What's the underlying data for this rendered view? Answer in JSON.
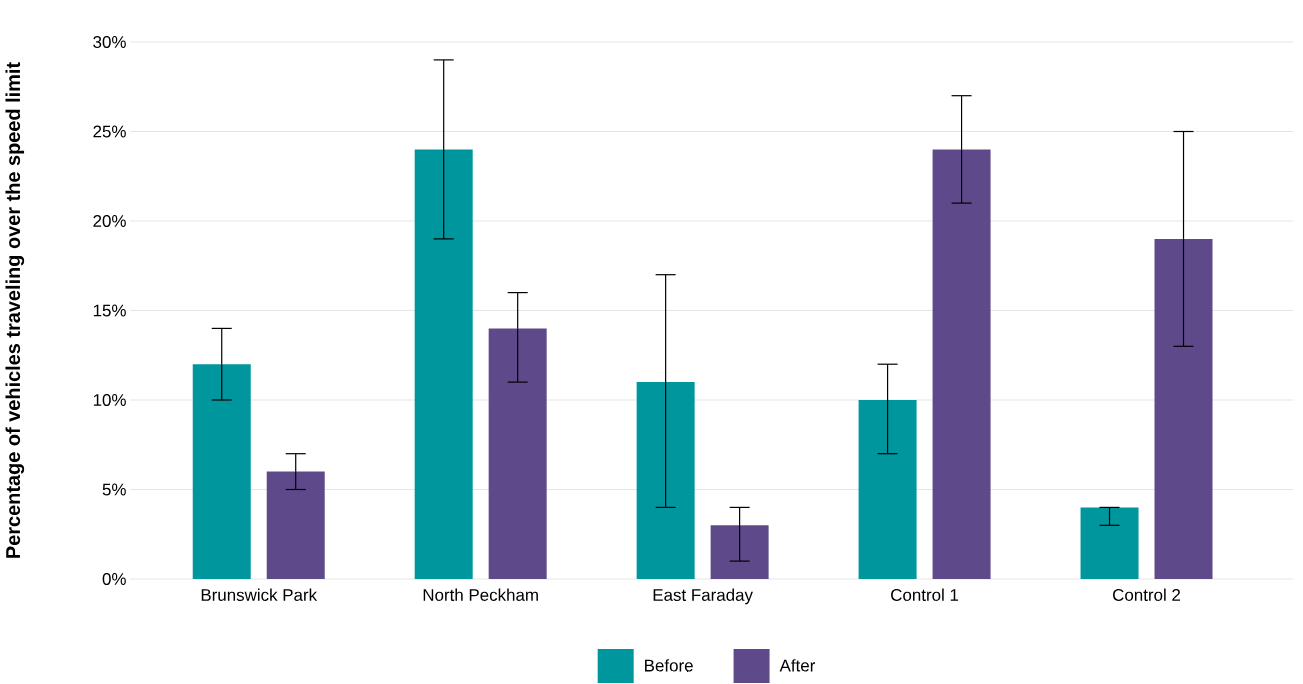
{
  "chart_data": {
    "type": "bar",
    "ylabel": "Percentage of vehicles traveling over the speed limit",
    "categories": [
      "Brunswick Park",
      "North Peckham",
      "East Faraday",
      "Control 1",
      "Control 2"
    ],
    "series": [
      {
        "name": "Before",
        "color": "#00969e",
        "values": [
          12,
          24,
          11,
          10,
          4
        ],
        "errors": [
          [
            10,
            14
          ],
          [
            19,
            29
          ],
          [
            4,
            17
          ],
          [
            7,
            12
          ],
          [
            3,
            4
          ]
        ]
      },
      {
        "name": "After",
        "color": "#5e4a8b",
        "values": [
          6,
          14,
          3,
          24,
          19
        ],
        "errors": [
          [
            5,
            7
          ],
          [
            11,
            16
          ],
          [
            1,
            4
          ],
          [
            21,
            27
          ],
          [
            13,
            25
          ]
        ]
      }
    ],
    "ylim": [
      0,
      30
    ],
    "yticks": [
      {
        "value": 0,
        "label": "0%"
      },
      {
        "value": 5,
        "label": "5%"
      },
      {
        "value": 10,
        "label": "10%"
      },
      {
        "value": 15,
        "label": "15%"
      },
      {
        "value": 20,
        "label": "20%"
      },
      {
        "value": 25,
        "label": "25%"
      },
      {
        "value": 30,
        "label": "30%"
      }
    ],
    "grid": "y",
    "legend": "bottom"
  }
}
